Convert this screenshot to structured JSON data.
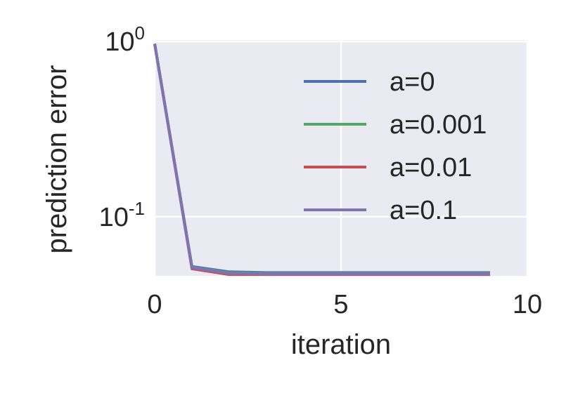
{
  "chart_data": {
    "type": "line",
    "title": "",
    "xlabel": "iteration",
    "ylabel": "prediction error",
    "xscale": "linear",
    "yscale": "log",
    "xlim": [
      0,
      10
    ],
    "ylim": [
      0.046,
      1.02
    ],
    "xticks": [
      {
        "value": 0,
        "label": "0"
      },
      {
        "value": 5,
        "label": "5"
      },
      {
        "value": 10,
        "label": "10"
      }
    ],
    "yticks": [
      {
        "value": 1,
        "base": "10",
        "exp": "0"
      },
      {
        "value": 0.1,
        "base": "10",
        "exp": "-1"
      }
    ],
    "grid": true,
    "legend_position": "upper right",
    "x": [
      0,
      1,
      2,
      3,
      4,
      5,
      6,
      7,
      8,
      9
    ],
    "series": [
      {
        "name": "a=0",
        "color": "#4c72b0",
        "values": [
          0.97,
          0.052,
          0.0485,
          0.048,
          0.048,
          0.048,
          0.048,
          0.048,
          0.048,
          0.048
        ]
      },
      {
        "name": "a=0.001",
        "color": "#55a868",
        "values": [
          0.97,
          0.0515,
          0.0478,
          0.0475,
          0.0475,
          0.0475,
          0.0475,
          0.0475,
          0.0475,
          0.0475
        ]
      },
      {
        "name": "a=0.01",
        "color": "#c44e52",
        "values": [
          0.97,
          0.0505,
          0.0468,
          0.0468,
          0.0468,
          0.0468,
          0.0468,
          0.0468,
          0.0468,
          0.0468
        ]
      },
      {
        "name": "a=0.1",
        "color": "#8172b2",
        "values": [
          0.97,
          0.0512,
          0.0475,
          0.0472,
          0.0472,
          0.0472,
          0.0472,
          0.0472,
          0.0472,
          0.0472
        ]
      }
    ],
    "colors": {
      "plot_background": "#eaeaf2",
      "grid": "#ffffff",
      "text": "#262626"
    }
  }
}
